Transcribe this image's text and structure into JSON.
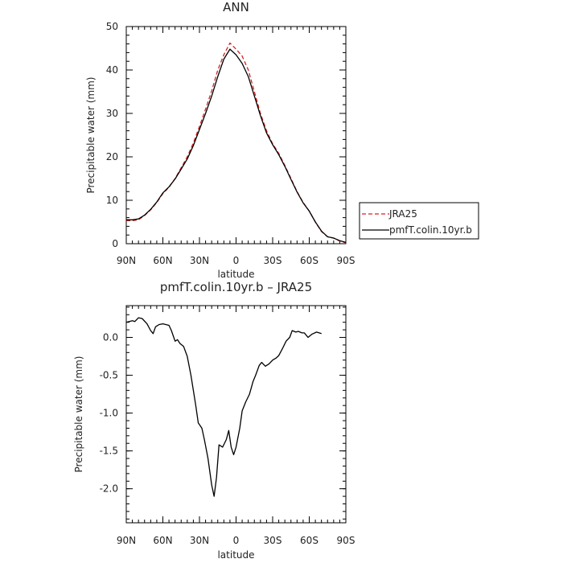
{
  "chart_data": [
    {
      "type": "line",
      "title": "ANN",
      "xlabel": "latitude",
      "ylabel": "Precipitable water (mm)",
      "xlim": [
        90,
        -90
      ],
      "ylim": [
        0,
        50
      ],
      "xticks": [
        90,
        60,
        30,
        0,
        -30,
        -60,
        -90
      ],
      "xtick_labels": [
        "90N",
        "60N",
        "30N",
        "0",
        "30S",
        "60S",
        "90S"
      ],
      "yticks": [
        0,
        10,
        20,
        30,
        40,
        50
      ],
      "ytick_labels": [
        "0",
        "10",
        "20",
        "30",
        "40",
        "50"
      ],
      "legend": "right",
      "series": [
        {
          "name": "JRA25",
          "color": "#d62020",
          "dash": "dashed",
          "points": [
            [
              90,
              5.3
            ],
            [
              85,
              5.3
            ],
            [
              80,
              5.5
            ],
            [
              75,
              6.5
            ],
            [
              70,
              7.8
            ],
            [
              65,
              9.5
            ],
            [
              60,
              11.5
            ],
            [
              55,
              13.0
            ],
            [
              50,
              15.0
            ],
            [
              45,
              17.5
            ],
            [
              40,
              20.0
            ],
            [
              35,
              23.2
            ],
            [
              30,
              27.0
            ],
            [
              25,
              31.0
            ],
            [
              20,
              35.2
            ],
            [
              15,
              40.0
            ],
            [
              10,
              43.5
            ],
            [
              5,
              46.2
            ],
            [
              0,
              44.8
            ],
            [
              -5,
              43.2
            ],
            [
              -10,
              40.0
            ],
            [
              -15,
              35.0
            ],
            [
              -20,
              30.0
            ],
            [
              -25,
              26.0
            ],
            [
              -30,
              23.0
            ],
            [
              -35,
              20.8
            ],
            [
              -40,
              18.0
            ],
            [
              -45,
              15.0
            ],
            [
              -50,
              12.0
            ],
            [
              -55,
              9.5
            ],
            [
              -60,
              7.5
            ],
            [
              -65,
              5.0
            ],
            [
              -70,
              2.8
            ],
            [
              -75,
              1.6
            ],
            [
              -80,
              1.3
            ],
            [
              -85,
              0.6
            ],
            [
              -90,
              0.2
            ]
          ]
        },
        {
          "name": "pmfT.colin.10yr.b",
          "color": "#000000",
          "dash": "solid",
          "points": [
            [
              90,
              5.5
            ],
            [
              85,
              5.5
            ],
            [
              80,
              5.7
            ],
            [
              75,
              6.6
            ],
            [
              70,
              7.9
            ],
            [
              65,
              9.6
            ],
            [
              60,
              11.7
            ],
            [
              55,
              13.1
            ],
            [
              50,
              14.9
            ],
            [
              45,
              17.2
            ],
            [
              40,
              19.5
            ],
            [
              35,
              22.6
            ],
            [
              30,
              26.3
            ],
            [
              25,
              30.0
            ],
            [
              20,
              34.0
            ],
            [
              15,
              38.5
            ],
            [
              10,
              42.5
            ],
            [
              5,
              44.8
            ],
            [
              0,
              43.5
            ],
            [
              -5,
              41.5
            ],
            [
              -10,
              38.5
            ],
            [
              -15,
              34.0
            ],
            [
              -20,
              29.5
            ],
            [
              -25,
              25.5
            ],
            [
              -30,
              22.8
            ],
            [
              -35,
              20.5
            ],
            [
              -40,
              17.8
            ],
            [
              -45,
              14.8
            ],
            [
              -50,
              11.9
            ],
            [
              -55,
              9.4
            ],
            [
              -60,
              7.5
            ],
            [
              -65,
              5.0
            ],
            [
              -70,
              2.9
            ],
            [
              -75,
              1.6
            ],
            [
              -80,
              1.3
            ],
            [
              -85,
              0.7
            ],
            [
              -90,
              0.3
            ]
          ]
        }
      ]
    },
    {
      "type": "line",
      "title": "pmfT.colin.10yr.b  –  JRA25",
      "xlabel": "latitude",
      "ylabel": "Precipitable water (mm)",
      "xlim": [
        90,
        -90
      ],
      "ylim": [
        -2.45,
        0.42
      ],
      "xticks": [
        90,
        60,
        30,
        0,
        -30,
        -60,
        -90
      ],
      "xtick_labels": [
        "90N",
        "60N",
        "30N",
        "0",
        "30S",
        "60S",
        "90S"
      ],
      "yticks": [
        0,
        -0.5,
        -1.0,
        -1.5,
        -2.0
      ],
      "ytick_labels": [
        "0.0",
        "-0.5",
        "-1.0",
        "-1.5",
        "-2.0"
      ],
      "series": [
        {
          "color": "#000000",
          "dash": "solid",
          "points": [
            [
              90,
              0.2
            ],
            [
              85,
              0.22
            ],
            [
              83,
              0.21
            ],
            [
              80,
              0.26
            ],
            [
              77,
              0.25
            ],
            [
              73,
              0.18
            ],
            [
              70,
              0.09
            ],
            [
              68,
              0.05
            ],
            [
              66,
              0.14
            ],
            [
              63,
              0.17
            ],
            [
              60,
              0.18
            ],
            [
              55,
              0.16
            ],
            [
              53,
              0.09
            ],
            [
              50,
              -0.05
            ],
            [
              48,
              -0.03
            ],
            [
              46,
              -0.08
            ],
            [
              43,
              -0.12
            ],
            [
              40,
              -0.25
            ],
            [
              37,
              -0.5
            ],
            [
              35,
              -0.7
            ],
            [
              33,
              -0.9
            ],
            [
              31,
              -1.13
            ],
            [
              28,
              -1.2
            ],
            [
              26,
              -1.35
            ],
            [
              23,
              -1.6
            ],
            [
              20,
              -1.95
            ],
            [
              18,
              -2.1
            ],
            [
              16,
              -1.85
            ],
            [
              14,
              -1.42
            ],
            [
              11,
              -1.45
            ],
            [
              8,
              -1.35
            ],
            [
              6,
              -1.23
            ],
            [
              4,
              -1.45
            ],
            [
              2,
              -1.55
            ],
            [
              0,
              -1.45
            ],
            [
              -3,
              -1.2
            ],
            [
              -5,
              -0.97
            ],
            [
              -8,
              -0.85
            ],
            [
              -11,
              -0.75
            ],
            [
              -14,
              -0.58
            ],
            [
              -16,
              -0.5
            ],
            [
              -19,
              -0.37
            ],
            [
              -21,
              -0.33
            ],
            [
              -24,
              -0.38
            ],
            [
              -27,
              -0.35
            ],
            [
              -30,
              -0.3
            ],
            [
              -33,
              -0.27
            ],
            [
              -35,
              -0.24
            ],
            [
              -38,
              -0.15
            ],
            [
              -41,
              -0.05
            ],
            [
              -44,
              0.0
            ],
            [
              -46,
              0.09
            ],
            [
              -49,
              0.07
            ],
            [
              -51,
              0.08
            ],
            [
              -54,
              0.06
            ],
            [
              -56,
              0.06
            ],
            [
              -59,
              0.0
            ],
            [
              -62,
              0.04
            ],
            [
              -66,
              0.07
            ],
            [
              -70,
              0.05
            ]
          ]
        }
      ]
    }
  ]
}
